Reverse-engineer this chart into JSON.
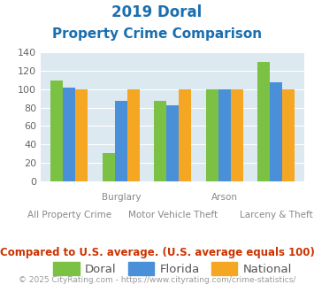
{
  "title_line1": "2019 Doral",
  "title_line2": "Property Crime Comparison",
  "categories": [
    "All Property Crime",
    "Burglary",
    "Motor Vehicle Theft",
    "Arson",
    "Larceny & Theft"
  ],
  "category_labels_top": [
    "",
    "Burglary",
    "",
    "Arson",
    ""
  ],
  "category_labels_bottom": [
    "All Property Crime",
    "",
    "Motor Vehicle Theft",
    "",
    "Larceny & Theft"
  ],
  "doral": [
    110,
    30,
    87,
    100,
    130
  ],
  "florida": [
    102,
    87,
    83,
    100,
    108
  ],
  "national": [
    100,
    100,
    100,
    100,
    100
  ],
  "doral_color": "#7bc143",
  "florida_color": "#4a90d9",
  "national_color": "#f5a623",
  "bg_color": "#dce9f0",
  "title_color": "#1a6faf",
  "ylim": [
    0,
    140
  ],
  "yticks": [
    0,
    20,
    40,
    60,
    80,
    100,
    120,
    140
  ],
  "footnote": "Compared to U.S. average. (U.S. average equals 100)",
  "copyright": "© 2025 CityRating.com - https://www.cityrating.com/crime-statistics/",
  "footnote_color": "#cc3300",
  "copyright_color": "#999999",
  "legend_labels": [
    "Doral",
    "Florida",
    "National"
  ]
}
